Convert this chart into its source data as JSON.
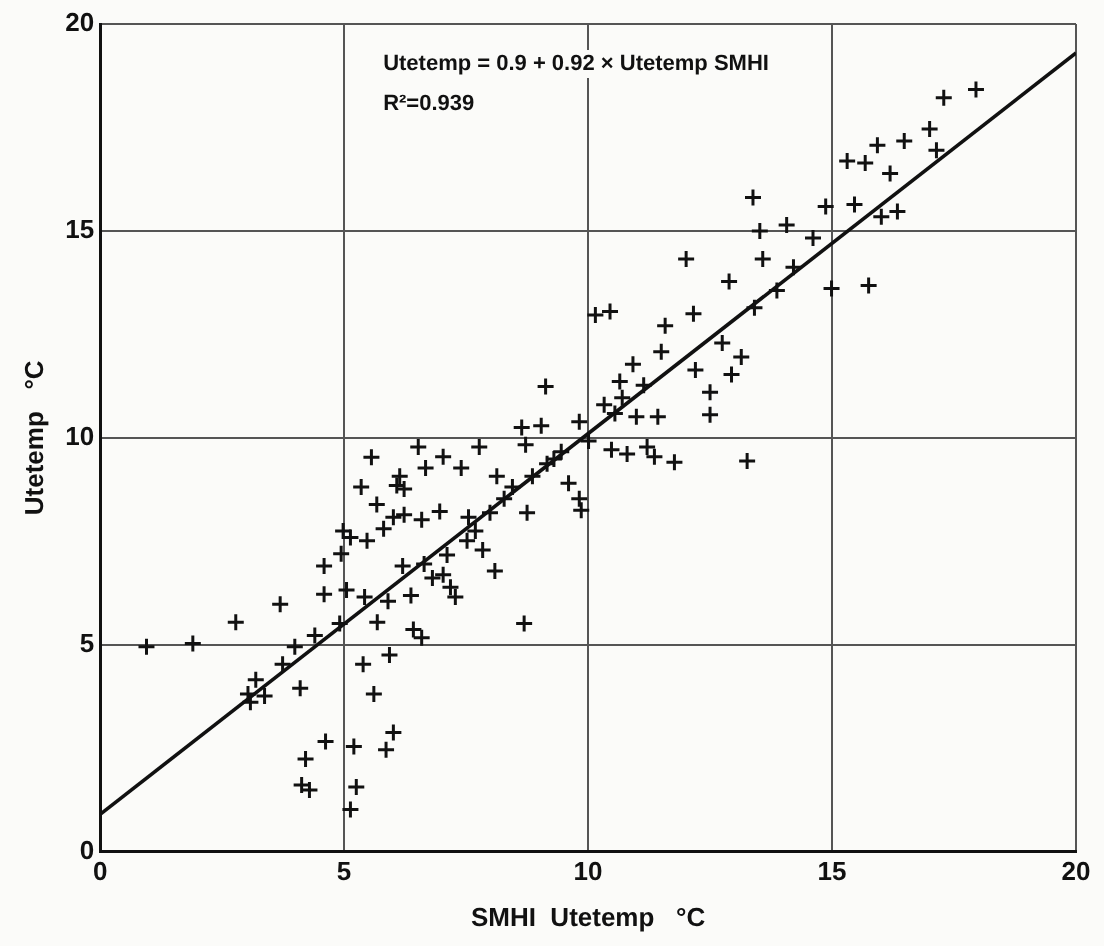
{
  "chart_data": {
    "type": "scatter",
    "xlabel": "SMHI  Utetemp   °C",
    "ylabel": "Utetemp   °C",
    "annotations": [
      "Utetemp = 0.9 + 0.92 × Utetemp SMHI",
      "R²=0.939"
    ],
    "xlim": [
      0,
      20
    ],
    "ylim": [
      0,
      20
    ],
    "xticks": [
      0,
      5,
      10,
      15,
      20
    ],
    "yticks": [
      0,
      5,
      10,
      15,
      20
    ],
    "grid": true,
    "legend": false,
    "marker": "cross",
    "series": [
      {
        "color": "#111111",
        "x": [
          0.95,
          1.9,
          2.78,
          3.03,
          3.08,
          3.19,
          3.37,
          3.69,
          3.74,
          3.99,
          4.1,
          4.13,
          4.21,
          4.29,
          4.4,
          4.62,
          4.59,
          4.59,
          4.91,
          4.94,
          4.98,
          5.05,
          5.13,
          5.2,
          5.25,
          5.13,
          5.35,
          5.39,
          5.42,
          5.47,
          5.56,
          5.61,
          5.67,
          5.68,
          5.81,
          5.86,
          5.9,
          5.93,
          6.01,
          6.01,
          6.08,
          6.14,
          6.23,
          6.23,
          6.2,
          6.37,
          6.42,
          6.52,
          6.59,
          6.59,
          6.64,
          6.67,
          6.81,
          6.96,
          7.03,
          7.03,
          7.11,
          7.18,
          7.28,
          7.4,
          7.52,
          7.55,
          7.69,
          7.77,
          7.84,
          7.99,
          8.09,
          8.13,
          8.28,
          8.45,
          8.64,
          8.69,
          8.72,
          8.75,
          8.86,
          9.04,
          9.13,
          9.16,
          9.3,
          9.45,
          9.6,
          9.82,
          9.86,
          9.82,
          10.01,
          10.15,
          10.45,
          10.33,
          10.48,
          10.55,
          10.65,
          10.7,
          10.8,
          10.92,
          10.99,
          11.14,
          11.21,
          11.36,
          11.43,
          11.5,
          11.58,
          11.77,
          12.01,
          12.16,
          12.2,
          12.5,
          12.5,
          12.75,
          12.89,
          12.94,
          13.14,
          13.26,
          13.38,
          13.41,
          13.52,
          13.58,
          13.87,
          14.07,
          14.21,
          14.61,
          14.87,
          14.99,
          15.31,
          15.46,
          15.68,
          15.75,
          15.93,
          16.01,
          16.19,
          16.34,
          16.48,
          17.0,
          17.14,
          17.29,
          17.95
        ],
        "values": [
          4.95,
          5.03,
          5.54,
          3.81,
          3.61,
          4.15,
          3.76,
          5.98,
          4.53,
          4.95,
          3.95,
          1.61,
          2.24,
          1.49,
          5.22,
          2.66,
          6.9,
          6.22,
          5.51,
          7.2,
          7.75,
          6.32,
          1.02,
          2.54,
          1.56,
          7.59,
          8.81,
          4.53,
          6.15,
          7.51,
          9.53,
          3.81,
          8.39,
          5.54,
          7.8,
          2.46,
          6.05,
          4.75,
          2.88,
          8.08,
          8.85,
          9.07,
          8.14,
          8.76,
          6.9,
          6.19,
          5.37,
          9.78,
          5.17,
          8.02,
          6.95,
          9.27,
          6.61,
          8.22,
          9.54,
          6.69,
          7.17,
          6.39,
          6.15,
          9.27,
          7.51,
          8.08,
          7.75,
          9.78,
          7.29,
          8.19,
          6.78,
          9.07,
          8.53,
          8.81,
          10.25,
          5.51,
          9.83,
          8.19,
          9.07,
          10.29,
          11.24,
          9.37,
          9.49,
          9.66,
          8.9,
          8.53,
          8.25,
          10.39,
          9.92,
          12.97,
          13.05,
          10.8,
          9.71,
          10.59,
          11.36,
          10.97,
          9.61,
          11.78,
          10.51,
          11.27,
          9.78,
          9.54,
          10.51,
          12.08,
          12.71,
          9.41,
          14.32,
          13.0,
          11.64,
          11.1,
          10.56,
          12.29,
          13.78,
          11.53,
          11.95,
          9.44,
          15.81,
          13.14,
          15.0,
          14.32,
          13.56,
          15.14,
          14.12,
          14.83,
          15.59,
          13.61,
          16.69,
          15.64,
          16.64,
          13.68,
          17.07,
          15.34,
          16.39,
          15.47,
          17.17,
          17.46,
          16.95,
          18.22,
          18.42
        ]
      },
      {
        "type": "line",
        "color": "#111111",
        "line_style": "solid",
        "marker": "none",
        "x": [
          0,
          20
        ],
        "values": [
          0.9,
          19.3
        ]
      }
    ]
  }
}
